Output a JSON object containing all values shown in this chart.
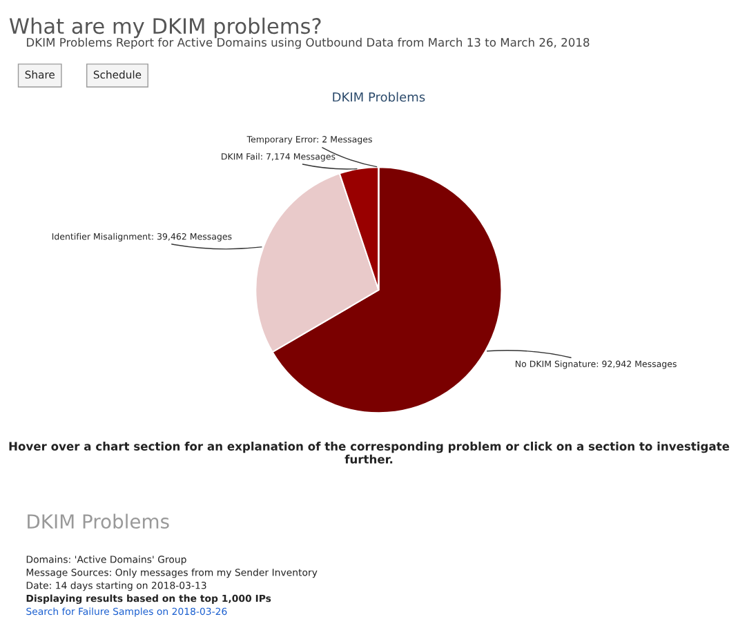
{
  "chart_data": {
    "type": "pie",
    "title": "What are my DKIM problems?",
    "subtitle": "DKIM Problems Report for Active Domains using Outbound Data from March 13 to March 26, 2018",
    "xlabel": "DKIM Problems",
    "categories": [
      "No DKIM Signature",
      "Identifier Misalignment",
      "DKIM Fail",
      "Temporary Error"
    ],
    "values": [
      92942,
      39462,
      7174,
      2
    ],
    "value_labels": [
      "92,942 Messages",
      "39,462 Messages",
      "7,174 Messages",
      "2 Messages"
    ],
    "colors": [
      "#7a0000",
      "#e9caca",
      "#990000",
      "#c81010"
    ],
    "annotations": [
      "Share",
      "Schedule",
      "Hover over a chart section for an explanation of the corresponding problem or click on a section to investigate further.",
      "DKIM Problems",
      "Domains: 'Active Domains' Group",
      "Message Sources: Only messages from my Sender Inventory",
      "Date: 14 days starting on 2018-03-13",
      "Displaying results based on the top 1,000 IPs",
      "Search for Failure Samples on 2018-03-26"
    ]
  }
}
